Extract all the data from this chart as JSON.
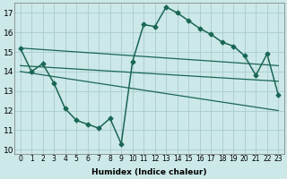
{
  "xlabel": "Humidex (Indice chaleur)",
  "xlim": [
    -0.5,
    23.5
  ],
  "ylim": [
    9.8,
    17.5
  ],
  "yticks": [
    10,
    11,
    12,
    13,
    14,
    15,
    16,
    17
  ],
  "xticks": [
    0,
    1,
    2,
    3,
    4,
    5,
    6,
    7,
    8,
    9,
    10,
    11,
    12,
    13,
    14,
    15,
    16,
    17,
    18,
    19,
    20,
    21,
    22,
    23
  ],
  "bg_color": "#cce8e8",
  "grid_color": "#aacccc",
  "line_color": "#1a6655",
  "main_line": {
    "x": [
      0,
      1,
      2,
      3,
      4,
      5,
      6,
      7,
      8,
      9,
      10,
      11,
      12,
      13,
      14,
      15,
      16,
      17,
      18,
      19,
      20,
      21,
      22,
      23
    ],
    "y": [
      15.2,
      14.0,
      14.4,
      13.4,
      12.1,
      11.5,
      11.3,
      11.1,
      11.6,
      10.3,
      14.5,
      16.4,
      16.3,
      17.3,
      17.0,
      16.6,
      16.2,
      15.9,
      15.5,
      15.3,
      14.8,
      13.8,
      14.9,
      12.8
    ],
    "marker": "D",
    "markersize": 2.5,
    "linewidth": 1.1
  },
  "trend_lines": [
    {
      "x": [
        0,
        23
      ],
      "y": [
        15.2,
        14.3
      ],
      "linewidth": 0.9
    },
    {
      "x": [
        0,
        23
      ],
      "y": [
        14.3,
        13.5
      ],
      "linewidth": 0.9
    },
    {
      "x": [
        0,
        23
      ],
      "y": [
        14.0,
        12.0
      ],
      "linewidth": 0.9
    }
  ]
}
